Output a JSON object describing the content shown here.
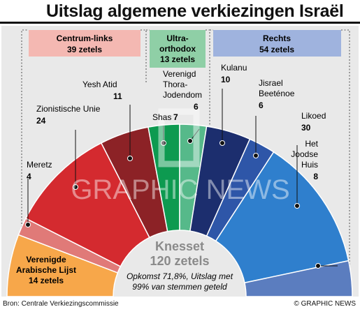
{
  "title": "Uitslag algemene verkiezingen Israël",
  "source": "Bron: Centrale Verkiezingscommissie",
  "credit": "© GRAPHIC NEWS",
  "watermark": "GRAPHIC NEWS",
  "center": {
    "label": "Knesset",
    "seats": "120 zetels",
    "note_line1": "Opkomst 71,8%, Uitslag met",
    "note_line2": "99% van stemmen geteld"
  },
  "blocs": [
    {
      "name": "Centrum-links",
      "seats": "39 zetels",
      "color": "#f4b8b2"
    },
    {
      "name_line1": "Ultra-",
      "name_line2": "orthodox",
      "seats": "13 zetels",
      "color": "#8fcfa6"
    },
    {
      "name": "Rechts",
      "seats": "54 zetels",
      "color": "#9fb3de"
    }
  ],
  "colors": {
    "red": "#d42a2f",
    "dark_red": "#8c2226",
    "pink": "#e07a78",
    "orange": "#f7a74a",
    "green": "#0d9a50",
    "light_green": "#56b98a",
    "navy": "#1c2e6e",
    "mid_blue": "#2e56a8",
    "blue": "#2f7fcd",
    "steel_blue": "#5b7dbf"
  },
  "chart_data": {
    "type": "pie",
    "subtype": "semicircle-parliament",
    "title": "Uitslag algemene verkiezingen Israël",
    "total": 120,
    "slices": [
      {
        "label": "Verenigde Arabische Lijst",
        "value": 14,
        "color": "#f7a74a"
      },
      {
        "label": "Meretz",
        "value": 4,
        "color": "#e07a78"
      },
      {
        "label": "Zionistische Unie",
        "value": 24,
        "color": "#d42a2f"
      },
      {
        "label": "Yesh Atid",
        "value": 11,
        "color": "#8c2226"
      },
      {
        "label": "Shas",
        "value": 7,
        "color": "#0d9a50"
      },
      {
        "label": "Verenigd Thora-Jodendom",
        "value": 6,
        "color": "#56b98a"
      },
      {
        "label": "Kulanu",
        "value": 10,
        "color": "#1c2e6e"
      },
      {
        "label": "Jisrael Beeténoe",
        "value": 6,
        "color": "#2e56a8"
      },
      {
        "label": "Likoed",
        "value": 30,
        "color": "#2f7fcd"
      },
      {
        "label": "Het Joodse Huis",
        "value": 8,
        "color": "#5b7dbf"
      }
    ],
    "party_labels": [
      {
        "lines": [
          "Verenigde",
          "Arabische Lijst",
          "14 zetels"
        ]
      },
      {
        "lines": [
          "Meretz"
        ],
        "value": "4"
      },
      {
        "lines": [
          "Zionistische Unie"
        ],
        "value": "24"
      },
      {
        "lines": [
          "Yesh Atid"
        ],
        "value": "11"
      },
      {
        "lines": [
          "Shas"
        ],
        "value": "7"
      },
      {
        "lines": [
          "Verenigd",
          "Thora-",
          "Jodendom"
        ],
        "value": "6"
      },
      {
        "lines": [
          "Kulanu"
        ],
        "value": "10"
      },
      {
        "lines": [
          "Jisrael",
          "Beeténoe"
        ],
        "value": "6"
      },
      {
        "lines": [
          "Likoed"
        ],
        "value": "30"
      },
      {
        "lines": [
          "Het",
          "Joodse",
          "Huis"
        ],
        "value": "8"
      }
    ]
  }
}
